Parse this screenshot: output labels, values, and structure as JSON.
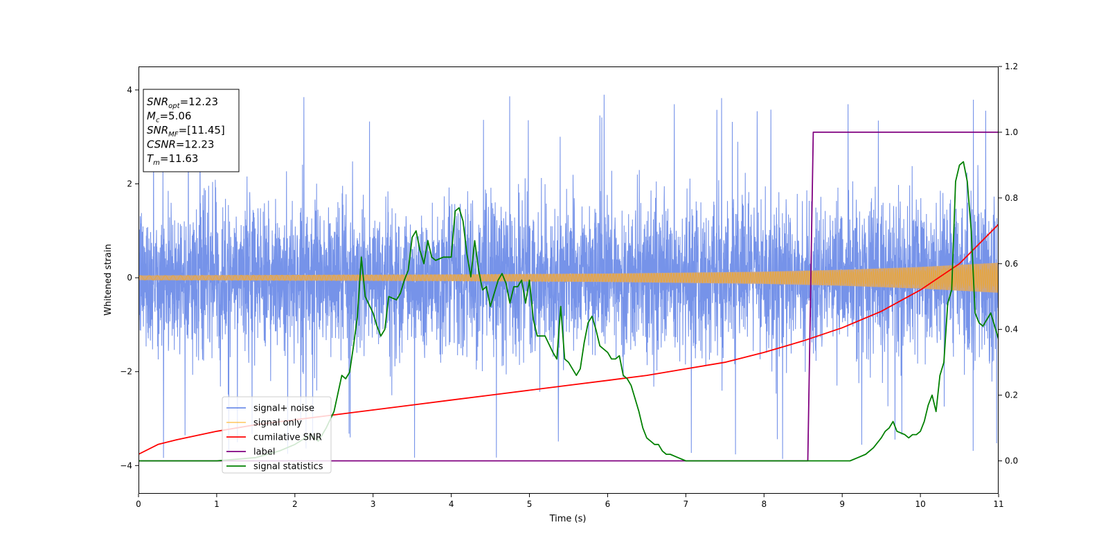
{
  "chart_data": {
    "type": "line",
    "xlabel": "Time (s)",
    "ylabel": "Whitened strain",
    "xlim": [
      0,
      11
    ],
    "ylim_left": [
      -4.6,
      4.5
    ],
    "ylim_right": [
      -0.1,
      1.2
    ],
    "x_ticks": [
      "0",
      "1",
      "2",
      "3",
      "4",
      "5",
      "6",
      "7",
      "8",
      "9",
      "10",
      "11"
    ],
    "x_tick_values": [
      0,
      1,
      2,
      3,
      4,
      5,
      6,
      7,
      8,
      9,
      10,
      11
    ],
    "y_left_ticks": [
      "4",
      "2",
      "0",
      "−2",
      "−4"
    ],
    "y_left_tick_values": [
      4,
      2,
      0,
      -2,
      -4
    ],
    "y_right_ticks": [
      "1.2",
      "1.0",
      "0.8",
      "0.6",
      "0.4",
      "0.2",
      "0.0"
    ],
    "y_right_tick_values": [
      1.2,
      1.0,
      0.8,
      0.6,
      0.4,
      0.2,
      0.0
    ],
    "grid": false,
    "legend_position": "lower-left",
    "stats_box": [
      {
        "name": "SNR",
        "sub": "opt",
        "value": "=12.23"
      },
      {
        "name": "M",
        "sub": "c",
        "value": "=5.06"
      },
      {
        "name": "SNR",
        "sub": "MF",
        "value": "=[11.45]"
      },
      {
        "name": "CSNR",
        "sub": "",
        "value": "=12.23"
      },
      {
        "name": "T",
        "sub": "m",
        "value": "=11.63"
      }
    ],
    "series": [
      {
        "name": "signal+ noise",
        "axis": "left",
        "color": "#4169e1",
        "noise_sigma": 0.8,
        "typical_peak": 3.3,
        "min": -4.15,
        "max": 4.1
      },
      {
        "name": "signal only",
        "axis": "left",
        "color": "#ffa500",
        "envelope_t": [
          0,
          2,
          4,
          6,
          8,
          9,
          10,
          11
        ],
        "envelope": [
          0.05,
          0.06,
          0.07,
          0.09,
          0.13,
          0.17,
          0.23,
          0.32
        ]
      },
      {
        "name": "cumilative SNR",
        "axis": "right",
        "color": "#ff0000",
        "x": [
          0,
          0.25,
          0.5,
          1,
          1.5,
          2,
          2.5,
          3,
          3.5,
          4,
          4.5,
          5,
          5.5,
          6,
          6.5,
          7,
          7.5,
          8,
          8.5,
          9,
          9.5,
          10,
          10.5,
          11
        ],
        "y": [
          0.02,
          0.05,
          0.065,
          0.09,
          0.11,
          0.125,
          0.14,
          0.155,
          0.17,
          0.185,
          0.2,
          0.215,
          0.23,
          0.245,
          0.26,
          0.28,
          0.3,
          0.33,
          0.365,
          0.405,
          0.455,
          0.52,
          0.6,
          0.72
        ]
      },
      {
        "name": "label",
        "axis": "right",
        "color": "#800080",
        "x": [
          0,
          8.56,
          8.63,
          11
        ],
        "y": [
          0.0,
          0.0,
          1.0,
          1.0
        ]
      },
      {
        "name": "signal statistics",
        "axis": "right",
        "color": "#008000",
        "x": [
          0,
          1.0,
          1.5,
          1.8,
          2.0,
          2.2,
          2.3,
          2.4,
          2.5,
          2.6,
          2.65,
          2.7,
          2.75,
          2.8,
          2.85,
          2.9,
          3.0,
          3.05,
          3.1,
          3.15,
          3.2,
          3.3,
          3.35,
          3.4,
          3.45,
          3.5,
          3.55,
          3.6,
          3.65,
          3.7,
          3.75,
          3.8,
          3.9,
          3.95,
          4.0,
          4.05,
          4.1,
          4.15,
          4.2,
          4.25,
          4.3,
          4.35,
          4.4,
          4.45,
          4.5,
          4.55,
          4.6,
          4.65,
          4.7,
          4.75,
          4.8,
          4.85,
          4.9,
          4.95,
          5.0,
          5.05,
          5.1,
          5.15,
          5.2,
          5.3,
          5.35,
          5.4,
          5.45,
          5.5,
          5.6,
          5.65,
          5.7,
          5.75,
          5.8,
          5.85,
          5.9,
          5.95,
          6.0,
          6.05,
          6.1,
          6.15,
          6.2,
          6.25,
          6.3,
          6.35,
          6.4,
          6.45,
          6.5,
          6.55,
          6.6,
          6.65,
          6.7,
          6.75,
          6.8,
          6.9,
          7.0,
          7.1,
          7.3,
          7.5,
          7.8,
          8.0,
          8.3,
          8.5,
          8.7,
          8.8,
          8.9,
          9.0,
          9.1,
          9.2,
          9.3,
          9.4,
          9.5,
          9.55,
          9.6,
          9.65,
          9.7,
          9.8,
          9.85,
          9.9,
          9.95,
          10.0,
          10.05,
          10.1,
          10.15,
          10.2,
          10.25,
          10.3,
          10.35,
          10.4,
          10.45,
          10.5,
          10.55,
          10.6,
          10.65,
          10.7,
          10.75,
          10.8,
          10.9,
          11.0
        ],
        "y": [
          0.0,
          0.0,
          0.01,
          0.03,
          0.05,
          0.08,
          0.06,
          0.1,
          0.15,
          0.26,
          0.25,
          0.27,
          0.35,
          0.44,
          0.62,
          0.5,
          0.45,
          0.41,
          0.38,
          0.4,
          0.5,
          0.49,
          0.51,
          0.55,
          0.58,
          0.68,
          0.7,
          0.64,
          0.6,
          0.67,
          0.62,
          0.61,
          0.62,
          0.62,
          0.62,
          0.76,
          0.77,
          0.73,
          0.63,
          0.56,
          0.67,
          0.58,
          0.52,
          0.53,
          0.47,
          0.51,
          0.55,
          0.57,
          0.54,
          0.48,
          0.53,
          0.53,
          0.55,
          0.48,
          0.55,
          0.43,
          0.38,
          0.38,
          0.38,
          0.33,
          0.31,
          0.47,
          0.31,
          0.3,
          0.26,
          0.28,
          0.36,
          0.42,
          0.44,
          0.4,
          0.35,
          0.34,
          0.33,
          0.31,
          0.31,
          0.32,
          0.26,
          0.25,
          0.23,
          0.19,
          0.15,
          0.1,
          0.07,
          0.06,
          0.05,
          0.05,
          0.03,
          0.02,
          0.02,
          0.01,
          0.0,
          0.0,
          0.0,
          0.0,
          0.0,
          0.0,
          0.0,
          0.0,
          0.0,
          0.0,
          0.0,
          0.0,
          0.0,
          0.01,
          0.02,
          0.04,
          0.07,
          0.09,
          0.1,
          0.12,
          0.09,
          0.08,
          0.07,
          0.08,
          0.08,
          0.09,
          0.12,
          0.17,
          0.2,
          0.15,
          0.26,
          0.3,
          0.48,
          0.52,
          0.85,
          0.9,
          0.91,
          0.85,
          0.7,
          0.45,
          0.42,
          0.41,
          0.45,
          0.37
        ]
      }
    ]
  }
}
